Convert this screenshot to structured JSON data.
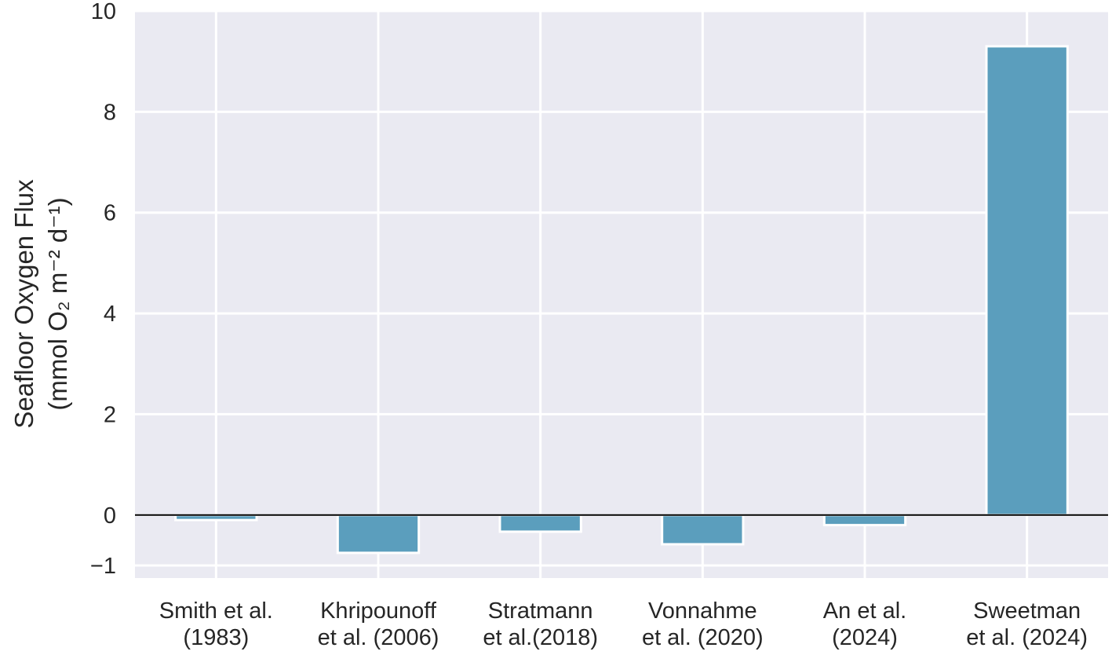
{
  "chart_data": {
    "type": "bar",
    "categories": [
      [
        "Smith et al.",
        "(1983)"
      ],
      [
        "Khripounoff",
        "et al. (2006)"
      ],
      [
        "Stratmann",
        "et al.(2018)"
      ],
      [
        "Vonnahme",
        "et al. (2020)"
      ],
      [
        "An et al.",
        "(2024)"
      ],
      [
        "Sweetman",
        "et al. (2024)"
      ]
    ],
    "values": [
      -0.1,
      -0.75,
      -0.33,
      -0.58,
      -0.2,
      9.3
    ],
    "ylabel_lines": [
      "Seafloor Oxygen Flux",
      "(mmol O₂ m⁻² d⁻¹)"
    ],
    "ylim": [
      -1.25,
      10
    ],
    "yticks": [
      -1,
      0,
      2,
      4,
      6,
      8,
      10
    ],
    "ytick_labels": [
      "−1",
      "0",
      "2",
      "4",
      "6",
      "8",
      "10"
    ],
    "bar_color": "#5b9ebd",
    "background_color": "#eaeaf2",
    "grid": true,
    "zero_line": true
  }
}
